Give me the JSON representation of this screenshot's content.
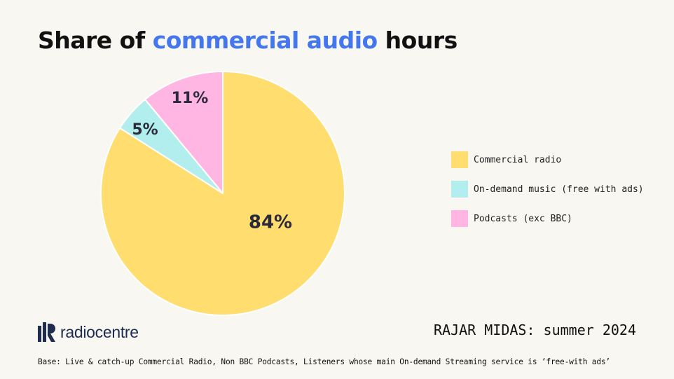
{
  "title": {
    "before": "Share of ",
    "highlight": "commercial audio",
    "after": " hours"
  },
  "chart_data": {
    "type": "pie",
    "title": "Share of commercial audio hours",
    "legend_position": "right",
    "slices": [
      {
        "label": "Commercial radio",
        "value": 84,
        "display": "84%",
        "color": "#ffdd6e"
      },
      {
        "label": "On-demand music (free with ads)",
        "value": 5,
        "display": "5%",
        "color": "#b1eeed"
      },
      {
        "label": "Podcasts (exc BBC)",
        "value": 11,
        "display": "11%",
        "color": "#ffb6e3"
      }
    ]
  },
  "brand": {
    "name": "radiocentre",
    "color": "#1e2c50"
  },
  "source": "RAJAR MIDAS: summer 2024",
  "base_note": "Base: Live & catch-up Commercial Radio, Non BBC Podcasts, Listeners whose main On-demand Streaming service is ‘free-with ads’"
}
